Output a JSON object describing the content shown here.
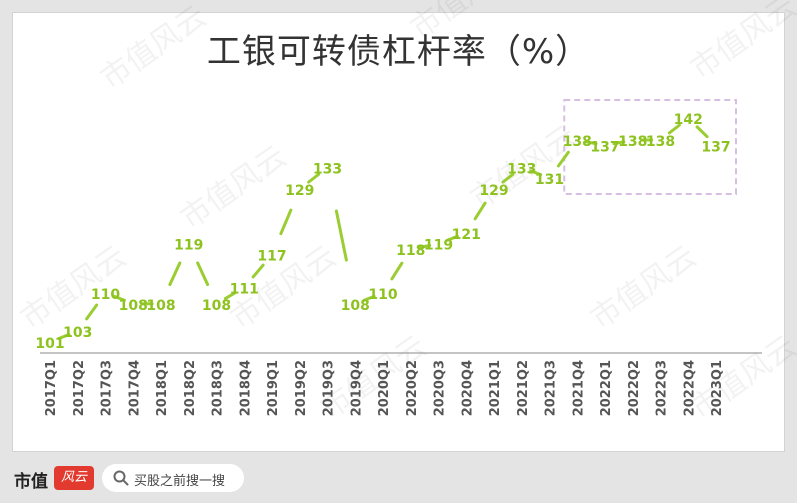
{
  "title": "工银可转债杠杆率（%）",
  "footer": {
    "brand": "市值",
    "logo_text": "风云",
    "search_placeholder": "买股之前搜一搜"
  },
  "watermark": "市值风云",
  "colors": {
    "line": "#9acd32",
    "label": "#8dc21f",
    "highlight": "#d8bfe2",
    "axis": "#888888"
  },
  "chart_data": {
    "type": "line",
    "title": "工银可转债杠杆率（%）",
    "categories": [
      "2017Q1",
      "2017Q2",
      "2017Q3",
      "2017Q4",
      "2018Q1",
      "2018Q2",
      "2018Q3",
      "2018Q4",
      "2019Q1",
      "2019Q2",
      "2019Q3",
      "2019Q4",
      "2020Q1",
      "2020Q2",
      "2020Q3",
      "2020Q4",
      "2021Q1",
      "2021Q2",
      "2021Q3",
      "2021Q4",
      "2022Q1",
      "2022Q2",
      "2022Q3",
      "2022Q4",
      "2023Q1"
    ],
    "values": [
      101,
      103,
      110,
      108,
      108,
      119,
      108,
      111,
      117,
      129,
      133,
      108,
      110,
      118,
      119,
      121,
      129,
      133,
      131,
      138,
      137,
      138,
      138,
      142,
      137
    ],
    "labels": [
      "101",
      "103",
      "110",
      "108",
      "108",
      "119",
      "108",
      "111",
      "117",
      "129",
      "133",
      "108",
      "110",
      "118",
      "119",
      "121",
      "129",
      "133",
      "131",
      "138",
      "137",
      "138",
      "138",
      "142",
      "137"
    ],
    "highlight_range": [
      "2021Q4",
      "2023Q1"
    ],
    "xlabel": "",
    "ylabel": "",
    "grid": false
  }
}
